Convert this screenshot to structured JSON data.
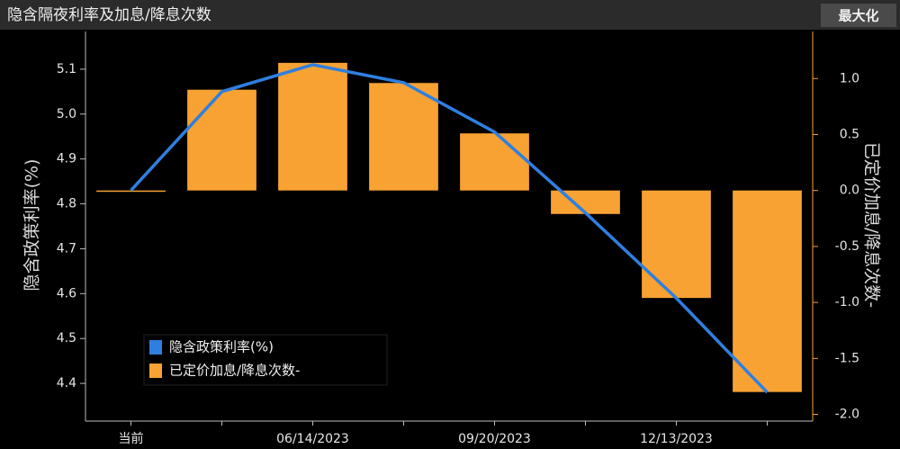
{
  "chart_data": {
    "type": "bar_line",
    "title": "隐含隔夜利率及加息/降息次数",
    "button": "最大化",
    "y_label": "隐含政策利率(%)",
    "y2_label": "已定价加息/降息次数-",
    "categories": [
      "当前",
      null,
      "06/14/2023",
      null,
      "09/20/2023",
      null,
      "12/13/2023",
      null
    ],
    "series": [
      {
        "name": "隐含政策利率(%)",
        "color": "#2f7fe0",
        "type": "line",
        "values": [
          4.83,
          5.05,
          5.11,
          5.07,
          4.96,
          4.78,
          4.59,
          4.38
        ]
      },
      {
        "name": "已定价加息/降息次数-",
        "color": "#f7a233",
        "type": "bar",
        "axis": "y2",
        "values": [
          0.0,
          0.9,
          1.14,
          0.96,
          0.51,
          -0.21,
          -0.96,
          -1.8
        ]
      }
    ],
    "ylim": [
      4.316,
      5.184
    ],
    "yticks": [
      4.4,
      4.5,
      4.6,
      4.7,
      4.8,
      4.9,
      {
        "value": 5.0,
        "label": "5.0"
      },
      5.1
    ],
    "y2lim": [
      -2.06,
      1.42
    ],
    "y2ticks": [
      {
        "value": 1.0,
        "label": "1.0"
      },
      0.5,
      {
        "value": 0.0,
        "label": "0.0"
      },
      -0.5,
      {
        "value": -1.0,
        "label": "-1.0"
      },
      -1.5,
      {
        "value": -2.0,
        "label": "-2.0"
      }
    ],
    "legend": "lower-left"
  }
}
